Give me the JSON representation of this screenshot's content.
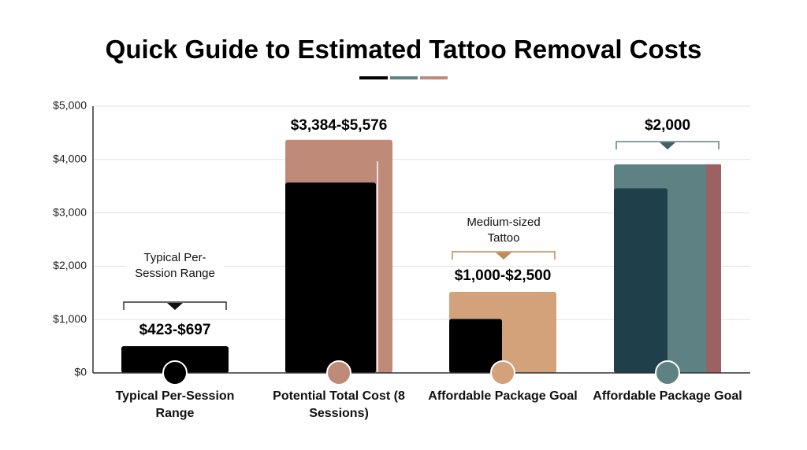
{
  "chart_data": {
    "type": "bar",
    "title": "Quick Guide to Estimated Tattoo Removal Costs",
    "categories": [
      "Typical Per-Session Range",
      "Potential Total Cost (8 Sessions)",
      "Affordable Package Goal",
      "Affordable Package Goal"
    ],
    "series": [
      {
        "colors": [
          "#000000",
          "#c08a78",
          "#d4a27a",
          "#5e8283"
        ],
        "values": [
          500,
          4370,
          1520,
          3910
        ]
      },
      {
        "colors": [
          "#000000",
          "#000000",
          "#000000",
          "#1f3f4a"
        ],
        "values": [
          500,
          3570,
          1010,
          3460
        ]
      }
    ],
    "range_labels": [
      "$423-$697",
      "$3,384-$5,576",
      "$1,000-$2,500",
      "$2,000"
    ],
    "annotations": [
      "Typical Per-Session Range",
      "Medium-sized Tattoo"
    ],
    "ylim": [
      0,
      5000
    ],
    "yticks": [
      {
        "value": 0,
        "label": "$0"
      },
      {
        "value": 1000,
        "label": "$1,000"
      },
      {
        "value": 2000,
        "label": "$2,000"
      },
      {
        "value": 3000,
        "label": "$3,000"
      },
      {
        "value": 4000,
        "label": "$4,000"
      },
      {
        "value": 5000,
        "label": "$5,000"
      }
    ],
    "grid": true
  }
}
